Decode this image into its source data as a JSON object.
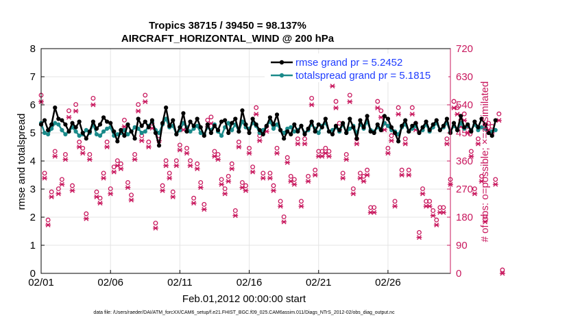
{
  "chart_data": {
    "type": "line",
    "title": "Tropics 38715 / 39450 = 98.137%",
    "subtitle": "AIRCRAFT_HORIZONTAL_WIND @ 200 hPa",
    "xlabel": "Feb.01,2012 00:00:00 start",
    "ylabel": "rmse and totalspread",
    "ylabel_right": "# of obs: o=possible; ×=assimilated",
    "footer": "data file: /Users/raeder/DAI/ATM_forcXX/CAM6_setup/f.e21.FHIST_BGC.f09_025.CAM6assim.011/Diags_NTrS_2012-02/obs_diag_output.nc",
    "xlim": [
      0,
      29.5
    ],
    "ylim": [
      0,
      8
    ],
    "ylim_right": [
      0,
      720
    ],
    "x_tick_values": [
      0,
      5,
      10,
      15,
      20,
      25
    ],
    "x_tick_labels": [
      "02/01",
      "02/06",
      "02/11",
      "02/16",
      "02/21",
      "02/26"
    ],
    "y_ticks": [
      0,
      1,
      2,
      3,
      4,
      5,
      6,
      7,
      8
    ],
    "y_ticks_right": [
      0,
      90,
      180,
      270,
      360,
      450,
      540,
      630,
      720
    ],
    "colors": {
      "rmse": "#000000",
      "spread": "#1a8a8a",
      "obs": "#c8175d",
      "legend_text": "#1e3cff"
    },
    "series": [
      {
        "name": "rmse grand pr = 5.2452",
        "axis": "left",
        "values": [
          5.3,
          5.45,
          5.1,
          5.3,
          5.9,
          5.5,
          5.45,
          5.3,
          5.05,
          5.35,
          5.2,
          5.4,
          5.0,
          4.8,
          5.05,
          5.4,
          5.15,
          5.3,
          5.55,
          5.4,
          5.35,
          5.05,
          4.7,
          5.1,
          4.9,
          5.3,
          5.05,
          4.8,
          5.5,
          5.25,
          5.4,
          5.2,
          5.45,
          5.0,
          4.55,
          5.35,
          5.9,
          5.25,
          5.45,
          4.95,
          5.2,
          5.7,
          5.05,
          5.4,
          5.25,
          5.5,
          5.2,
          4.9,
          5.3,
          5.0,
          5.25,
          5.1,
          5.4,
          5.45,
          5.0,
          5.35,
          5.5,
          5.05,
          5.8,
          5.3,
          5.0,
          5.5,
          5.3,
          5.1,
          4.95,
          5.25,
          5.55,
          5.3,
          5.65,
          5.1,
          4.8,
          5.05,
          4.95,
          5.3,
          5.05,
          5.25,
          4.95,
          5.15,
          5.4,
          5.05,
          5.3,
          5.2,
          5.5,
          5.05,
          4.95,
          5.25,
          5.1,
          5.35,
          5.0,
          5.5,
          5.2,
          4.8,
          5.45,
          5.2,
          5.6,
          5.05,
          5.0,
          5.3,
          5.1,
          5.6,
          5.5,
          5.2,
          5.0,
          4.7,
          5.25,
          5.45,
          5.05,
          5.25,
          5.35,
          5.0,
          5.2,
          5.4,
          5.1,
          5.3,
          5.45,
          5.1,
          5.25,
          5.5,
          5.0,
          5.35,
          5.1,
          5.6,
          5.2,
          5.3,
          5.05,
          5.4,
          5.2,
          5.5,
          5.3,
          5.0,
          4.9,
          5.45
        ],
        "marker": "circle"
      },
      {
        "name": "totalspread grand pr = 5.1815",
        "axis": "left",
        "values": [
          5.35,
          5.0,
          4.95,
          5.15,
          5.35,
          5.3,
          5.1,
          4.95,
          5.05,
          5.2,
          5.05,
          4.9,
          4.95,
          5.1,
          5.0,
          5.3,
          4.95,
          4.9,
          5.05,
          5.15,
          5.2,
          4.9,
          4.95,
          5.0,
          5.1,
          4.95,
          5.05,
          5.2,
          5.15,
          5.0,
          5.05,
          5.25,
          5.4,
          5.1,
          5.0,
          5.3,
          5.5,
          5.2,
          5.25,
          4.95,
          5.1,
          5.35,
          5.2,
          5.05,
          5.15,
          5.25,
          5.0,
          4.95,
          5.2,
          5.1,
          5.3,
          5.05,
          4.9,
          5.2,
          5.35,
          5.1,
          5.3,
          5.05,
          5.4,
          5.2,
          5.15,
          5.35,
          5.25,
          5.0,
          5.1,
          5.25,
          5.4,
          5.15,
          5.3,
          5.1,
          5.0,
          5.15,
          5.2,
          5.05,
          5.1,
          5.25,
          5.0,
          5.1,
          5.3,
          5.15,
          5.0,
          5.25,
          5.35,
          5.05,
          5.1,
          5.2,
          5.05,
          5.3,
          5.0,
          5.15,
          5.25,
          5.0,
          5.3,
          5.15,
          5.4,
          5.1,
          5.05,
          5.2,
          5.1,
          5.35,
          5.25,
          5.1,
          5.05,
          4.95,
          5.2,
          5.3,
          5.05,
          5.15,
          5.25,
          5.0,
          5.1,
          5.3,
          5.05,
          5.2,
          5.35,
          5.1,
          5.2,
          5.35,
          5.05,
          5.25,
          5.1,
          5.35,
          5.15,
          5.25,
          5.1,
          5.3,
          5.1,
          5.2,
          5.15,
          5.0,
          5.05,
          5.1
        ],
        "marker": "circle"
      },
      {
        "name": "possible observations",
        "axis": "right",
        "marker": "o",
        "values": [
          560,
          310,
          160,
          250,
          380,
          260,
          290,
          370,
          510,
          270,
          530,
          410,
          390,
          180,
          370,
          550,
          250,
          230,
          310,
          410,
          260,
          330,
          350,
          340,
          480,
          280,
          240,
          370,
          530,
          430,
          560,
          410,
          470,
          150,
          430,
          270,
          350,
          310,
          250,
          350,
          400,
          470,
          390,
          350,
          230,
          340,
          280,
          210,
          480,
          490,
          380,
          370,
          290,
          260,
          300,
          340,
          190,
          410,
          280,
          270,
          390,
          330,
          520,
          430,
          310,
          460,
          310,
          270,
          390,
          220,
          170,
          360,
          300,
          290,
          420,
          220,
          420,
          300,
          550,
          320,
          380,
          380,
          390,
          380,
          610,
          540,
          470,
          310,
          370,
          560,
          260,
          420,
          310,
          300,
          320,
          200,
          200,
          540,
          510,
          470,
          390,
          430,
          220,
          520,
          320,
          420,
          320,
          520,
          470,
          120,
          260,
          220,
          220,
          190,
          160,
          200,
          200,
          420,
          290,
          540,
          520,
          480,
          500,
          460,
          380,
          260,
          420,
          300,
          170,
          470,
          460,
          290,
          500,
          0
        ]
      },
      {
        "name": "assimilated observations",
        "axis": "right",
        "marker": "x",
        "values": [
          550,
          305,
          155,
          245,
          375,
          255,
          285,
          365,
          500,
          265,
          520,
          405,
          385,
          175,
          365,
          540,
          245,
          225,
          305,
          405,
          255,
          325,
          345,
          335,
          470,
          275,
          235,
          365,
          520,
          425,
          550,
          405,
          465,
          145,
          425,
          265,
          345,
          305,
          245,
          345,
          395,
          460,
          385,
          345,
          225,
          335,
          275,
          205,
          470,
          480,
          375,
          365,
          285,
          255,
          295,
          335,
          185,
          405,
          275,
          265,
          385,
          325,
          510,
          425,
          305,
          455,
          305,
          265,
          385,
          215,
          165,
          355,
          295,
          285,
          415,
          215,
          415,
          295,
          540,
          315,
          375,
          375,
          385,
          375,
          600,
          530,
          460,
          305,
          365,
          550,
          255,
          415,
          305,
          295,
          315,
          195,
          195,
          530,
          500,
          460,
          385,
          425,
          215,
          510,
          315,
          415,
          315,
          510,
          460,
          115,
          255,
          215,
          215,
          185,
          155,
          195,
          195,
          415,
          285,
          530,
          510,
          470,
          490,
          450,
          375,
          255,
          415,
          295,
          165,
          460,
          450,
          285,
          490,
          0
        ]
      }
    ]
  }
}
